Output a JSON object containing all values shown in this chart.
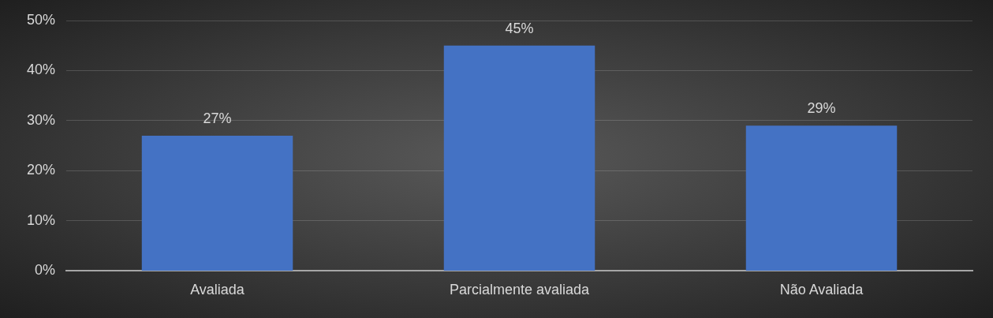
{
  "chart_data": {
    "type": "bar",
    "categories": [
      "Avaliada",
      "Parcialmente avaliada",
      "Não Avaliada"
    ],
    "values": [
      27,
      45,
      29
    ],
    "color": "#4472c4",
    "value_labels": [
      "27%",
      "45%",
      "29%"
    ],
    "ylim": [
      0,
      50
    ],
    "yticks": [
      {
        "value": 0,
        "label": "0%"
      },
      {
        "value": 10,
        "label": "10%"
      },
      {
        "value": 20,
        "label": "20%"
      },
      {
        "value": 30,
        "label": "30%"
      },
      {
        "value": 40,
        "label": "40%"
      },
      {
        "value": 50,
        "label": "50%"
      }
    ],
    "grid": "y",
    "legend": false
  }
}
